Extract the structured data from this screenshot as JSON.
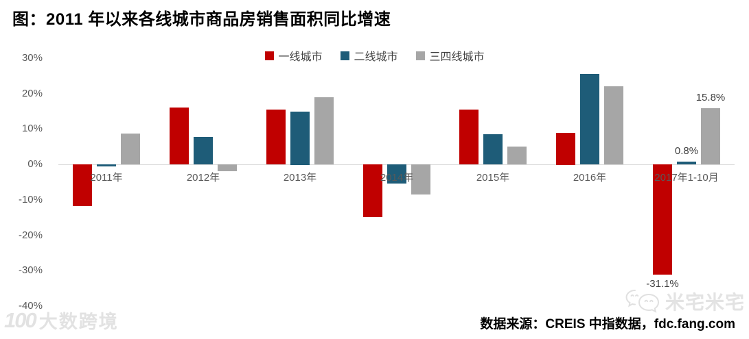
{
  "page": {
    "title": "图：2011 年以来各线城市商品房销售面积同比增速"
  },
  "footer": {
    "source_text": "数据来源：CREIS 中指数据，fdc.fang.com"
  },
  "watermarks": {
    "left_logo_text": "100",
    "left_text": "大数跨境",
    "right_text": "米宅米宅"
  },
  "chart_data": {
    "type": "bar",
    "title": "图：2011 年以来各线城市商品房销售面积同比增速",
    "categories": [
      "2011年",
      "2012年",
      "2013年",
      "2014年",
      "2015年",
      "2016年",
      "2017年1-10月"
    ],
    "series": [
      {
        "name": "一线城市",
        "id": "tier1",
        "color": "#c00000",
        "values": [
          -11.8,
          16.0,
          15.5,
          -14.9,
          15.5,
          9.0,
          -31.1
        ],
        "data_labels": [
          null,
          null,
          null,
          null,
          null,
          null,
          "-31.1%"
        ]
      },
      {
        "name": "二线城市",
        "id": "tier2",
        "color": "#1e5c78",
        "values": [
          -0.5,
          7.7,
          15.0,
          -5.5,
          8.5,
          25.5,
          0.8
        ],
        "data_labels": [
          null,
          null,
          null,
          null,
          null,
          null,
          "0.8%"
        ]
      },
      {
        "name": "三四线城市",
        "id": "tier34",
        "color": "#a6a6a6",
        "values": [
          8.7,
          -2.0,
          19.0,
          -8.5,
          5.0,
          22.0,
          15.8
        ],
        "data_labels": [
          null,
          null,
          null,
          null,
          null,
          null,
          "15.8%"
        ]
      }
    ],
    "xlabel": "",
    "ylabel": "",
    "ylim": [
      -40,
      30
    ],
    "ytick_values": [
      30,
      20,
      10,
      0,
      -10,
      -20,
      -30,
      -40
    ],
    "ytick_labels": [
      "30%",
      "20%",
      "10%",
      "0%",
      "-10%",
      "-20%",
      "-30%",
      "-40%"
    ],
    "legend_position": "top",
    "grid": false,
    "axis_line_color": "#d9d9d9",
    "tick_text_color": "#595959"
  }
}
